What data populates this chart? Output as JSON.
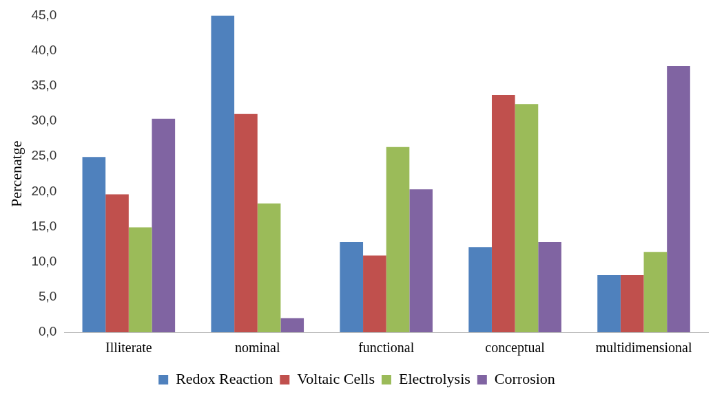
{
  "chart_data": {
    "type": "bar",
    "ylabel": "Percenatge",
    "categories": [
      "Illiterate",
      "nominal",
      "functional",
      "conceptual",
      "multidimensional"
    ],
    "series": [
      {
        "name": "Redox Reaction",
        "color": "#4f81bd",
        "values": [
          24.9,
          45.0,
          12.8,
          12.1,
          8.1
        ]
      },
      {
        "name": "Voltaic Cells",
        "color": "#c0504d",
        "values": [
          19.6,
          31.0,
          10.9,
          33.7,
          8.1
        ]
      },
      {
        "name": "Electrolysis",
        "color": "#9bbb59",
        "values": [
          14.9,
          18.3,
          26.3,
          32.4,
          11.4
        ]
      },
      {
        "name": "Corrosion",
        "color": "#8064a2",
        "values": [
          30.3,
          2.0,
          20.3,
          12.8,
          37.8
        ]
      }
    ],
    "ylim": [
      0,
      45
    ],
    "yticks": [
      {
        "value": 0,
        "label": "0,0"
      },
      {
        "value": 5,
        "label": "5,0"
      },
      {
        "value": 10,
        "label": "10,0"
      },
      {
        "value": 15,
        "label": "15,0"
      },
      {
        "value": 20,
        "label": "20,0"
      },
      {
        "value": 25,
        "label": "25,0"
      },
      {
        "value": 30,
        "label": "30,0"
      },
      {
        "value": 35,
        "label": "35,0"
      },
      {
        "value": 40,
        "label": "40,0"
      },
      {
        "value": 45,
        "label": "45,0"
      }
    ],
    "grid": false,
    "legend": "bottom"
  }
}
